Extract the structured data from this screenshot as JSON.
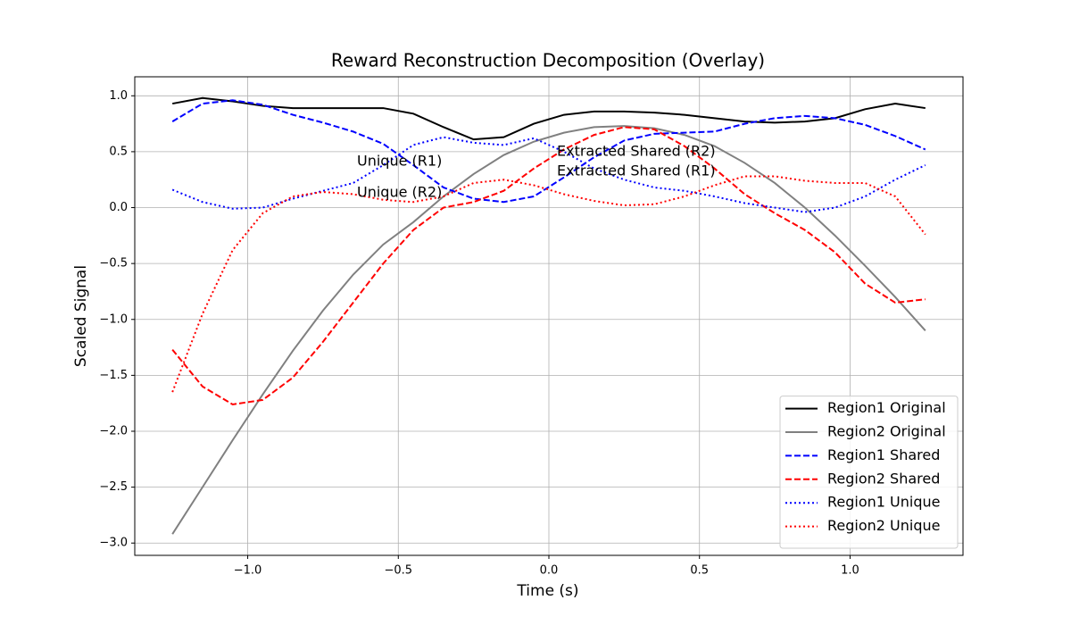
{
  "chart_data": {
    "type": "line",
    "title": "Reward Reconstruction Decomposition (Overlay)",
    "x_label": "Time (s)",
    "y_label": "Scaled Signal",
    "x": [
      -1.25,
      -1.15,
      -1.05,
      -0.95,
      -0.85,
      -0.75,
      -0.65,
      -0.55,
      -0.45,
      -0.35,
      -0.25,
      -0.15,
      -0.05,
      0.05,
      0.15,
      0.25,
      0.35,
      0.45,
      0.55,
      0.65,
      0.75,
      0.85,
      0.95,
      1.05,
      1.15,
      1.25
    ],
    "series": [
      {
        "name": "Region1 Original",
        "color": "#000000",
        "style": "solid",
        "values": [
          0.93,
          0.98,
          0.95,
          0.91,
          0.89,
          0.89,
          0.89,
          0.89,
          0.84,
          0.72,
          0.61,
          0.63,
          0.75,
          0.83,
          0.86,
          0.86,
          0.85,
          0.83,
          0.8,
          0.77,
          0.76,
          0.77,
          0.8,
          0.88,
          0.93,
          0.89
        ]
      },
      {
        "name": "Region2 Original",
        "color": "#808080",
        "style": "solid",
        "values": [
          -2.92,
          -2.5,
          -2.08,
          -1.67,
          -1.28,
          -0.92,
          -0.6,
          -0.33,
          -0.13,
          0.1,
          0.3,
          0.47,
          0.59,
          0.67,
          0.72,
          0.73,
          0.71,
          0.65,
          0.55,
          0.4,
          0.22,
          0.0,
          -0.25,
          -0.52,
          -0.8,
          -1.1
        ]
      },
      {
        "name": "Region1 Shared",
        "color": "#0000ff",
        "style": "dashed",
        "values": [
          0.77,
          0.93,
          0.96,
          0.92,
          0.83,
          0.76,
          0.68,
          0.57,
          0.38,
          0.18,
          0.08,
          0.05,
          0.1,
          0.27,
          0.45,
          0.6,
          0.66,
          0.67,
          0.68,
          0.75,
          0.8,
          0.82,
          0.8,
          0.74,
          0.64,
          0.52
        ]
      },
      {
        "name": "Region2 Shared",
        "color": "#ff0000",
        "style": "dashed",
        "values": [
          -1.27,
          -1.6,
          -1.76,
          -1.72,
          -1.52,
          -1.2,
          -0.85,
          -0.5,
          -0.2,
          0.0,
          0.05,
          0.15,
          0.35,
          0.52,
          0.65,
          0.72,
          0.7,
          0.55,
          0.35,
          0.12,
          -0.05,
          -0.2,
          -0.4,
          -0.68,
          -0.85,
          -0.82
        ]
      },
      {
        "name": "Region1 Unique",
        "color": "#0000ff",
        "style": "dotted",
        "values": [
          0.16,
          0.05,
          -0.01,
          0.0,
          0.08,
          0.15,
          0.22,
          0.38,
          0.56,
          0.63,
          0.58,
          0.56,
          0.62,
          0.5,
          0.35,
          0.25,
          0.18,
          0.15,
          0.1,
          0.04,
          0.0,
          -0.04,
          0.0,
          0.1,
          0.25,
          0.38
        ]
      },
      {
        "name": "Region2 Unique",
        "color": "#ff0000",
        "style": "dotted",
        "values": [
          -1.65,
          -0.95,
          -0.38,
          -0.05,
          0.1,
          0.14,
          0.12,
          0.07,
          0.05,
          0.1,
          0.22,
          0.25,
          0.2,
          0.12,
          0.06,
          0.02,
          0.03,
          0.1,
          0.2,
          0.28,
          0.28,
          0.24,
          0.22,
          0.22,
          0.1,
          -0.24
        ]
      }
    ],
    "annotations": [
      {
        "text": "Unique (R1)",
        "color": "#0000ff"
      },
      {
        "text": "Unique (R2)",
        "color": "#ff0000"
      },
      {
        "text": "Extracted Shared (R2)",
        "color": "#ff0000"
      },
      {
        "text": "Extracted Shared (R1)",
        "color": "#0000ff"
      }
    ],
    "xlim": [
      -1.375,
      1.375
    ],
    "ylim": [
      -3.11,
      1.17
    ],
    "xticks": [
      {
        "value": -1.0,
        "label": "−1.0"
      },
      {
        "value": -0.5,
        "label": "−0.5"
      },
      {
        "value": 0.0,
        "label": "0.0"
      },
      {
        "value": 0.5,
        "label": "0.5"
      },
      {
        "value": 1.0,
        "label": "1.0"
      }
    ],
    "yticks": [
      {
        "value": -3.0,
        "label": "−3.0"
      },
      {
        "value": -2.5,
        "label": "−2.5"
      },
      {
        "value": -2.0,
        "label": "−2.0"
      },
      {
        "value": -1.5,
        "label": "−1.5"
      },
      {
        "value": -1.0,
        "label": "−1.0"
      },
      {
        "value": -0.5,
        "label": "−0.5"
      },
      {
        "value": 0.0,
        "label": "0.0"
      },
      {
        "value": 0.5,
        "label": "0.5"
      },
      {
        "value": 1.0,
        "label": "1.0"
      }
    ],
    "grid": true,
    "legend": "lower right"
  }
}
